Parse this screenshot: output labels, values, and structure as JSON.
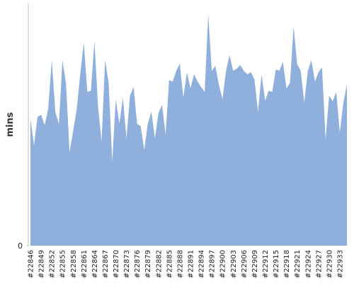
{
  "chart_data": {
    "type": "area",
    "ylabel": "mins",
    "color": "#8fb0dc",
    "categories": [
      "#22846",
      null,
      null,
      "#22849",
      null,
      null,
      "#22852",
      null,
      null,
      "#22855",
      null,
      null,
      "#22858",
      null,
      null,
      "#22861",
      null,
      null,
      "#22864",
      null,
      null,
      "#22867",
      null,
      null,
      "#22870",
      null,
      null,
      "#22873",
      null,
      null,
      "#22876",
      null,
      null,
      "#22879",
      null,
      null,
      "#22882",
      null,
      null,
      "#22885",
      null,
      null,
      "#22888",
      null,
      null,
      "#22891",
      null,
      null,
      "#22894",
      null,
      null,
      "#22897",
      null,
      null,
      "#22900",
      null,
      null,
      "#22903",
      null,
      null,
      "#22906",
      null,
      null,
      "#22909",
      null,
      null,
      "#22912",
      null,
      null,
      "#22915",
      null,
      null,
      "#22918",
      null,
      null,
      "#22921",
      null,
      null,
      "#22924",
      null,
      null,
      "#22927",
      null,
      null,
      "#22930",
      null,
      null,
      "#22933",
      null,
      null
    ],
    "values": [
      52.3,
      41.5,
      53.2,
      54.1,
      49.7,
      56.7,
      76.6,
      55.3,
      50.3,
      76.6,
      67.0,
      38.6,
      47.4,
      56.1,
      70.8,
      83.9,
      63.5,
      64.0,
      84.5,
      57.6,
      43.0,
      76.6,
      67.0,
      34.8,
      60.5,
      50.3,
      61.1,
      44.4,
      62.0,
      65.5,
      50.3,
      49.4,
      39.5,
      50.3,
      55.3,
      44.4,
      54.7,
      58.2,
      45.9,
      68.4,
      67.8,
      72.2,
      75.1,
      61.1,
      71.6,
      64.9,
      70.8,
      67.8,
      65.5,
      63.5,
      95.6,
      72.2,
      74.3,
      66.4,
      60.5,
      72.2,
      78.7,
      72.2,
      73.1,
      74.6,
      72.2,
      70.8,
      71.6,
      68.7,
      55.3,
      70.8,
      59.9,
      64.0,
      63.5,
      72.8,
      72.2,
      76.0,
      64.9,
      67.3,
      90.6,
      75.1,
      72.2,
      59.1,
      72.2,
      76.6,
      67.8,
      71.6,
      73.7,
      43.9,
      62.0,
      59.6,
      63.5,
      46.8,
      59.1,
      66.4
    ],
    "ylim": [
      0,
      100
    ],
    "yticks": [
      0
    ]
  }
}
